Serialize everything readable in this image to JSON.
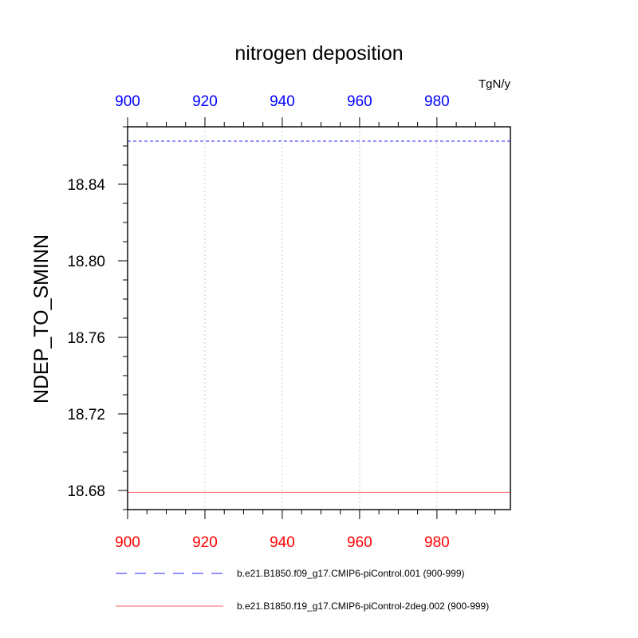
{
  "chart_data": {
    "type": "line",
    "title": "nitrogen deposition",
    "ylabel": "NDEP_TO_SMINN",
    "units": "TgN/y",
    "xlim": [
      900,
      999
    ],
    "ylim": [
      18.67,
      18.87
    ],
    "x_ticks": [
      900,
      920,
      940,
      960,
      980
    ],
    "x_tick_labels": [
      "900",
      "920",
      "940",
      "960",
      "980"
    ],
    "y_ticks": [
      18.68,
      18.72,
      18.76,
      18.8,
      18.84
    ],
    "y_tick_labels": [
      "18.68",
      "18.72",
      "18.76",
      "18.80",
      "18.84"
    ],
    "top_axis_color": "#0000ff",
    "bottom_axis_color": "#ff0000",
    "grid": "vertical dotted at x ticks",
    "series": [
      {
        "name": "b.e21.B1850.f09_g17.CMIP6-piControl.001 (900-999)",
        "color": "#0000ff",
        "dash": "dashed",
        "x": [
          900,
          999
        ],
        "y": [
          18.8625,
          18.8625
        ]
      },
      {
        "name": "b.e21.B1850.f19_g17.CMIP6-piControl-2deg.002 (900-999)",
        "color": "#ff0000",
        "dash": "solid",
        "x": [
          900,
          999
        ],
        "y": [
          18.679,
          18.679
        ]
      }
    ]
  }
}
